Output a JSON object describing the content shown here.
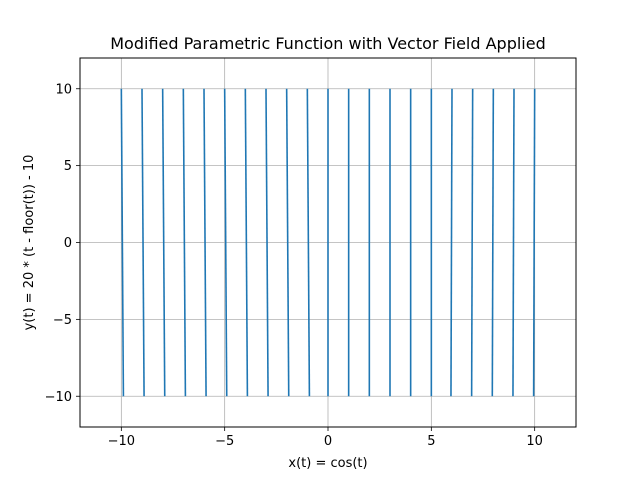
{
  "chart_data": {
    "type": "line",
    "title": "Modified Parametric Function with Vector Field Applied",
    "xlabel": "x(t) = cos(t)",
    "ylabel": "y(t) = 20 * (t - floor(t)) - 10",
    "xlim": [
      -12,
      12
    ],
    "ylim": [
      -12,
      12
    ],
    "xticks": [
      -10,
      -5,
      0,
      5,
      10
    ],
    "yticks": [
      -10,
      -5,
      0,
      5,
      10
    ],
    "grid": true,
    "series": [
      {
        "color": "#1f77b4",
        "segments": [
          [
            -10,
            10,
            -9.9,
            -10
          ],
          [
            -9,
            10,
            -8.9,
            -10
          ],
          [
            -8,
            10,
            -7.9,
            -10
          ],
          [
            -7,
            10,
            -6.9,
            -10
          ],
          [
            -6,
            10,
            -5.9,
            -10
          ],
          [
            -5,
            10,
            -4.9,
            -10
          ],
          [
            -4,
            10,
            -3.9,
            -10
          ],
          [
            -3,
            10,
            -2.9,
            -10
          ],
          [
            -2,
            10,
            -1.9,
            -10
          ],
          [
            -1,
            10,
            -0.9,
            -10
          ],
          [
            0,
            10,
            0.0,
            -10
          ],
          [
            1,
            10,
            1.0,
            -10
          ],
          [
            2,
            10,
            2.0,
            -10
          ],
          [
            3,
            10,
            3.0,
            -10
          ],
          [
            4,
            10,
            4.0,
            -10
          ],
          [
            5,
            10,
            5.0,
            -10
          ],
          [
            6,
            10,
            5.95,
            -10
          ],
          [
            7,
            10,
            6.95,
            -10
          ],
          [
            8,
            10,
            7.95,
            -10
          ],
          [
            9,
            10,
            8.95,
            -10
          ],
          [
            10,
            10,
            9.95,
            -10
          ]
        ]
      }
    ]
  }
}
